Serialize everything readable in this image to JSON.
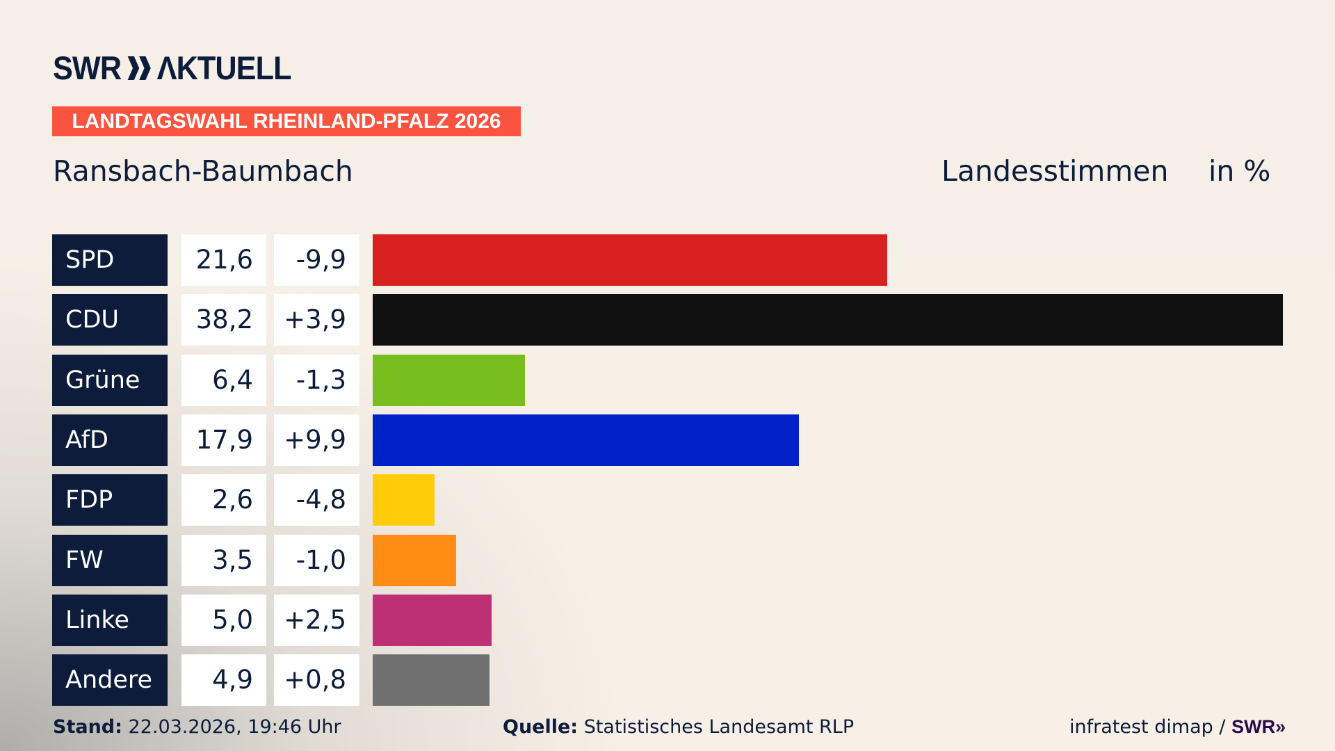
{
  "header": {
    "logo_text": "SWR AKTUELL",
    "banner": "LANDTAGSWAHL RHEINLAND-PFALZ 2026",
    "region": "Ransbach-Baumbach",
    "measure": "Landesstimmen",
    "unit": "in %"
  },
  "colors": {
    "navy": "#0c1c3a",
    "banner": "#fa5340"
  },
  "chart_data": {
    "type": "bar",
    "orientation": "horizontal",
    "categories": [
      "SPD",
      "CDU",
      "Grüne",
      "AfD",
      "FDP",
      "FW",
      "Linke",
      "Andere"
    ],
    "values": [
      21.6,
      38.2,
      6.4,
      17.9,
      2.6,
      3.5,
      5.0,
      4.9
    ],
    "value_labels": [
      "21,6",
      "38,2",
      "6,4",
      "17,9",
      "2,6",
      "3,5",
      "5,0",
      "4,9"
    ],
    "diff_labels": [
      "-9,9",
      "+3,9",
      "-1,3",
      "+9,9",
      "-4,8",
      "-1,0",
      "+2,5",
      "+0,8"
    ],
    "diffs": [
      -9.9,
      3.9,
      -1.3,
      9.9,
      -4.8,
      -1.0,
      2.5,
      0.8
    ],
    "colors": [
      "#d92020",
      "#111111",
      "#78be1e",
      "#0020c8",
      "#ffcc0a",
      "#ff8c14",
      "#be3075",
      "#707070"
    ],
    "xlim": [
      0,
      38.2
    ],
    "grid": false
  },
  "footer": {
    "stand_label": "Stand:",
    "stand_value": "22.03.2026, 19:46 Uhr",
    "source_label": "Quelle:",
    "source_value": "Statistisches Landesamt RLP",
    "credit": "infratest dimap /",
    "credit_logo": "SWR"
  }
}
